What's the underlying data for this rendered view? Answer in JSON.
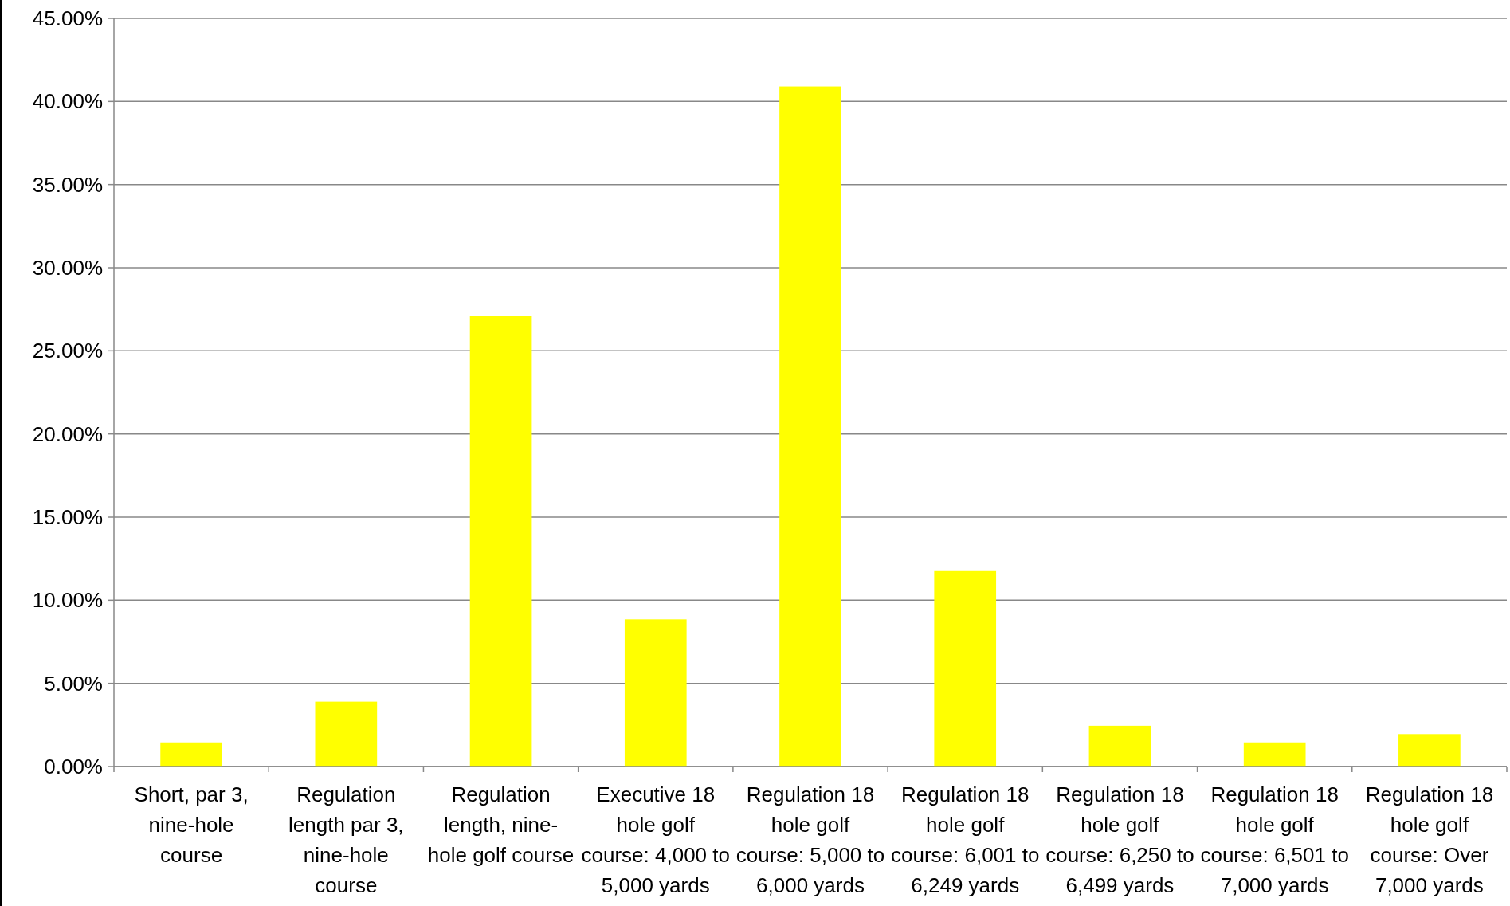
{
  "chart_data": {
    "type": "bar",
    "categories": [
      "Short, par 3, nine-hole course",
      "Regulation length par 3, nine-hole course",
      "Regulation length, nine-hole golf course",
      "Executive 18 hole golf course: 4,000 to 5,000 yards",
      "Regulation 18 hole golf course: 5,000 to 6,000 yards",
      "Regulation 18 hole golf course: 6,001 to 6,249 yards",
      "Regulation 18 hole golf course: 6,250 to 6,499 yards",
      "Regulation 18 hole golf course: 6,501 to 7,000 yards",
      "Regulation 18 hole golf course: Over 7,000 yards"
    ],
    "values": [
      1.45,
      3.9,
      27.1,
      8.85,
      40.9,
      11.8,
      2.45,
      1.45,
      1.95
    ],
    "color": "#ffff00",
    "ylim": [
      0,
      45
    ],
    "yticks": [
      {
        "value": 0,
        "label": "0.00%"
      },
      {
        "value": 5,
        "label": "5.00%"
      },
      {
        "value": 10,
        "label": "10.00%"
      },
      {
        "value": 15,
        "label": "15.00%"
      },
      {
        "value": 20,
        "label": "20.00%"
      },
      {
        "value": 25,
        "label": "25.00%"
      },
      {
        "value": 30,
        "label": "30.00%"
      },
      {
        "value": 35,
        "label": "35.00%"
      },
      {
        "value": 40,
        "label": "40.00%"
      },
      {
        "value": 45,
        "label": "45.00%"
      }
    ],
    "grid": "y"
  }
}
